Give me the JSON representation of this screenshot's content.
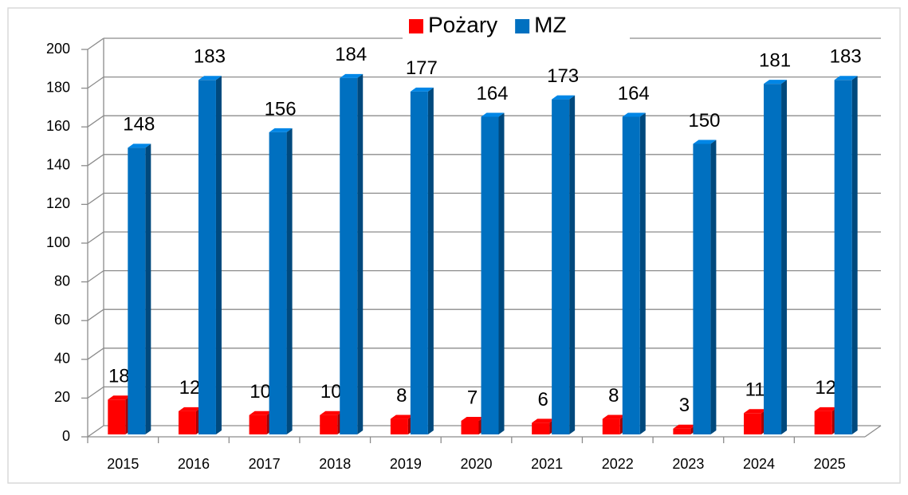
{
  "chart_data": {
    "type": "bar3d",
    "categories": [
      "2015",
      "2016",
      "2017",
      "2018",
      "2019",
      "2020",
      "2021",
      "2022",
      "2023",
      "2024",
      "2025"
    ],
    "series": [
      {
        "name": "Pożary",
        "color": "#ff0000",
        "values": [
          18,
          12,
          10,
          10,
          8,
          7,
          6,
          8,
          3,
          11,
          12
        ]
      },
      {
        "name": "MZ",
        "color": "#0070c0",
        "values": [
          148,
          183,
          156,
          184,
          177,
          164,
          173,
          164,
          150,
          181,
          183
        ]
      }
    ],
    "ylim": [
      0,
      200
    ],
    "yticks": [
      0,
      20,
      40,
      60,
      80,
      100,
      120,
      140,
      160,
      180,
      200
    ],
    "grid": true,
    "legend": "top"
  }
}
